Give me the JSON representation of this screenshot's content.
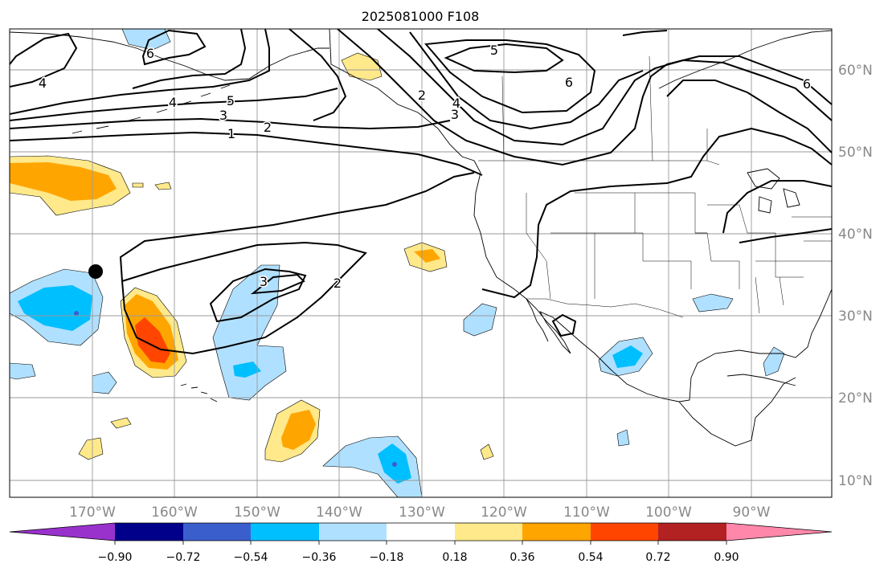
{
  "title": "2025081000 F108",
  "lon_labels": [
    "170°W",
    "160°W",
    "150°W",
    "140°W",
    "130°W",
    "120°W",
    "110°W",
    "100°W",
    "90°W"
  ],
  "lat_labels": [
    "60°N",
    "50°N",
    "40°N",
    "30°N",
    "20°N",
    "10°N"
  ],
  "colorbar": {
    "colors": [
      "#9932cc",
      "#00008b",
      "#3a5fcd",
      "#00bfff",
      "#b0e0ff",
      "#ffffff",
      "#ffe98a",
      "#ffa500",
      "#ff4500",
      "#b22222",
      "#ff88aa"
    ],
    "tick_labels": [
      "−0.90",
      "−0.72",
      "−0.54",
      "−0.36",
      "−0.18",
      "0.18",
      "0.36",
      "0.54",
      "0.72",
      "0.90"
    ]
  },
  "contour_labels": [
    "6",
    "4",
    "5",
    "4",
    "3",
    "2",
    "1",
    "2",
    "3",
    "2",
    "5",
    "6",
    "4",
    "3",
    "6"
  ],
  "colors": {
    "grid": "#999999",
    "coast": "#000000",
    "contour": "#000000",
    "axis_label": "#888888"
  }
}
